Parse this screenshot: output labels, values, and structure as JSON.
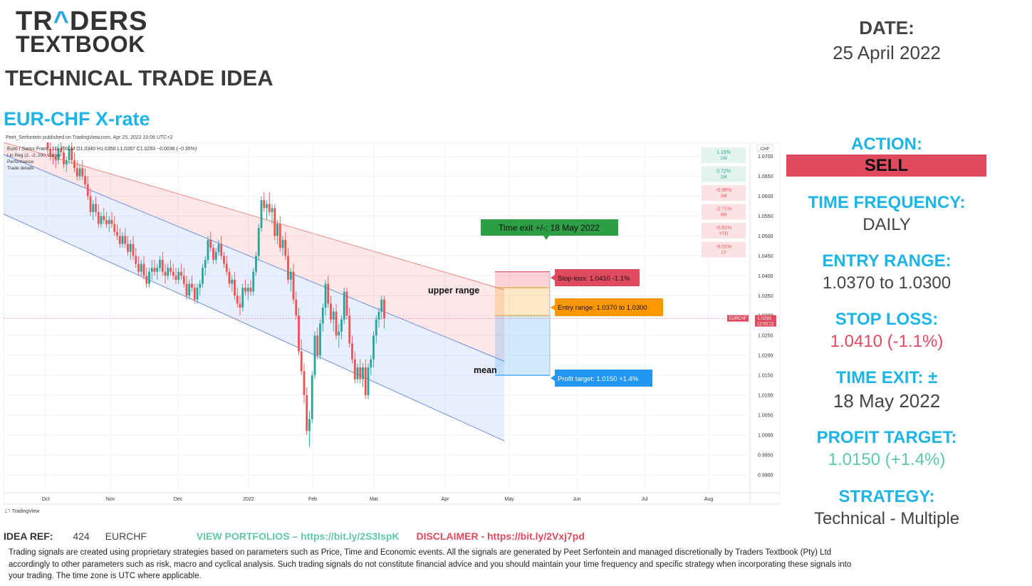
{
  "brand": {
    "line1_a": "TR",
    "line1_caret": "^",
    "line1_b": "DERS",
    "line2": "TEXTBOOK"
  },
  "doc_title": "TECHNICAL TRADE IDEA",
  "pair_title": "EUR-CHF X-rate",
  "published_by": "Peet_Serfontein published on TradingView.com, Apr 25, 2022 10:06 UTC+2",
  "date": {
    "label": "DATE:",
    "value": "25 April 2022"
  },
  "action": {
    "label": "ACTION:",
    "value": "SELL"
  },
  "time_frequency": {
    "label": "TIME FREQUENCY:",
    "value": "DAILY"
  },
  "entry_range": {
    "label": "ENTRY RANGE:",
    "value": "1.0370 to 1.0300"
  },
  "stop_loss": {
    "label": "STOP LOSS:",
    "value": "1.0410 (-1.1%)"
  },
  "time_exit": {
    "label": "TIME EXIT: ±",
    "value": "18 May 2022"
  },
  "profit_target": {
    "label": "PROFIT TARGET:",
    "value": "1.0150 (+1.4%)"
  },
  "strategy": {
    "label": "STRATEGY:",
    "value": "Technical - Multiple"
  },
  "colors": {
    "accent": "#1eb4e6",
    "sell": "#e04a5f",
    "stop": "#e04a5f",
    "profit": "#5fc9a0",
    "entry": "#ff9800",
    "target_box": "#2196f3",
    "time_exit": "#2e9e45"
  },
  "footer": {
    "idea_ref_label": "IDEA REF:",
    "idea_ref_num": "424",
    "idea_ref_pair": "EURCHF",
    "portfolios": "VIEW PORTFOLIOS – https://bit.ly/2S3lspK",
    "disclaimer": "DISCLAIMER -  https://bit.ly/2Vxj7pd",
    "line1": "Trading signals are created using proprietary strategies based on parameters such as Price, Time and Economic events.  All the signals are generated by Peet Serfontein and managed discretionally by Traders Textbook (Pty) Ltd",
    "line2": "accordingly to other parameters such as risk, macro and cyclical analysis. Such trading signals do not constitute financial advice and you should maintain your time frequency and specific strategy when incorporating these signals into",
    "line3": "your trading. The time zone is UTC where applicable."
  },
  "chart_data": {
    "type": "candlestick",
    "symbol_info": "Euro / Swiss Franc, 1D, FXCM  O1.0340  H1.0350  L1.0267  C1.0293  −0.0036 (−0.35%)",
    "indicators": [
      "Lin Reg (2, -2, 200, close)",
      "Performance",
      "Trade details"
    ],
    "currency": "CHF",
    "x_ticks": [
      "Oct",
      "Nov",
      "Dec",
      "2022",
      "Feb",
      "Mar",
      "Apr",
      "May",
      "Jun",
      "Jul",
      "Aug"
    ],
    "y_ticks": [
      "1.0700",
      "1.0650",
      "1.0600",
      "1.0550",
      "1.0500",
      "1.0450",
      "1.0400",
      "1.0350",
      "1.0300",
      "1.0250",
      "1.0200",
      "1.0150",
      "1.0100",
      "1.0050",
      "1.0000",
      "0.9950",
      "0.9900"
    ],
    "ylim": [
      0.9855,
      1.0735
    ],
    "last_price": {
      "symbol": "EURCHF",
      "value": "1.0293",
      "countdown": "12:53:12"
    },
    "performance": [
      {
        "value": "1.15%",
        "period": "1W"
      },
      {
        "value": "0.72%",
        "period": "1M"
      },
      {
        "value": "-0.86%",
        "period": "3M"
      },
      {
        "value": "-2.71%",
        "period": "6M"
      },
      {
        "value": "-0.81%",
        "period": "YTD"
      },
      {
        "value": "-6.01%",
        "period": "1Y"
      }
    ],
    "annotations": {
      "time_exit": "Time exit +/-: 18 May 2022",
      "stop_loss": "Stop-loss: 1.0410 -1.1%",
      "entry_range": "Entry range: 1.0370 to 1.0300",
      "profit_target": "Profit target: 1.0150 +1.4%",
      "upper_range": "upper range",
      "mean": "mean"
    },
    "levels": {
      "stop": 1.041,
      "entry_high": 1.037,
      "entry_low": 1.03,
      "target": 1.015
    },
    "regression_channel": {
      "upper": [
        [
          0,
          1.0735
        ],
        [
          171,
          1.0365
        ]
      ],
      "mean": [
        [
          0,
          1.0705
        ],
        [
          171,
          1.0185
        ]
      ],
      "lower": [
        [
          0,
          1.0555
        ],
        [
          171,
          0.9985
        ]
      ]
    },
    "candles": [
      [
        1.074,
        1.076,
        1.07,
        1.072
      ],
      [
        1.072,
        1.074,
        1.069,
        1.0705
      ],
      [
        1.0705,
        1.0725,
        1.068,
        1.07
      ],
      [
        1.07,
        1.072,
        1.067,
        1.069
      ],
      [
        1.069,
        1.073,
        1.068,
        1.072
      ],
      [
        1.072,
        1.075,
        1.07,
        1.071
      ],
      [
        1.071,
        1.0725,
        1.067,
        1.068
      ],
      [
        1.068,
        1.07,
        1.066,
        1.069
      ],
      [
        1.069,
        1.073,
        1.068,
        1.072
      ],
      [
        1.072,
        1.074,
        1.068,
        1.069
      ],
      [
        1.069,
        1.071,
        1.066,
        1.067
      ],
      [
        1.067,
        1.069,
        1.064,
        1.065
      ],
      [
        1.065,
        1.068,
        1.064,
        1.067
      ],
      [
        1.067,
        1.069,
        1.064,
        1.065
      ],
      [
        1.065,
        1.067,
        1.062,
        1.063
      ],
      [
        1.063,
        1.065,
        1.059,
        1.06
      ],
      [
        1.06,
        1.062,
        1.055,
        1.056
      ],
      [
        1.056,
        1.059,
        1.054,
        1.058
      ],
      [
        1.058,
        1.06,
        1.055,
        1.056
      ],
      [
        1.056,
        1.058,
        1.052,
        1.053
      ],
      [
        1.053,
        1.056,
        1.052,
        1.055
      ],
      [
        1.055,
        1.057,
        1.053,
        1.054
      ],
      [
        1.054,
        1.056,
        1.052,
        1.053
      ],
      [
        1.053,
        1.055,
        1.051,
        1.054
      ],
      [
        1.054,
        1.056,
        1.052,
        1.053
      ],
      [
        1.053,
        1.055,
        1.05,
        1.051
      ],
      [
        1.051,
        1.053,
        1.049,
        1.05
      ],
      [
        1.05,
        1.052,
        1.047,
        1.048
      ],
      [
        1.048,
        1.051,
        1.047,
        1.05
      ],
      [
        1.05,
        1.052,
        1.047,
        1.048
      ],
      [
        1.048,
        1.05,
        1.045,
        1.046
      ],
      [
        1.046,
        1.049,
        1.044,
        1.048
      ],
      [
        1.048,
        1.05,
        1.044,
        1.045
      ],
      [
        1.045,
        1.047,
        1.042,
        1.043
      ],
      [
        1.043,
        1.045,
        1.04,
        1.041
      ],
      [
        1.041,
        1.044,
        1.04,
        1.043
      ],
      [
        1.043,
        1.045,
        1.039,
        1.04
      ],
      [
        1.04,
        1.042,
        1.037,
        1.038
      ],
      [
        1.038,
        1.042,
        1.037,
        1.041
      ],
      [
        1.041,
        1.044,
        1.039,
        1.042
      ],
      [
        1.042,
        1.044,
        1.04,
        1.041
      ],
      [
        1.041,
        1.043,
        1.039,
        1.042
      ],
      [
        1.042,
        1.045,
        1.041,
        1.044
      ],
      [
        1.044,
        1.046,
        1.04,
        1.041
      ],
      [
        1.041,
        1.043,
        1.038,
        1.04
      ],
      [
        1.04,
        1.043,
        1.039,
        1.042
      ],
      [
        1.042,
        1.044,
        1.04,
        1.041
      ],
      [
        1.041,
        1.043,
        1.039,
        1.04
      ],
      [
        1.04,
        1.042,
        1.038,
        1.039
      ],
      [
        1.039,
        1.042,
        1.038,
        1.041
      ],
      [
        1.041,
        1.043,
        1.039,
        1.04
      ],
      [
        1.04,
        1.042,
        1.037,
        1.038
      ],
      [
        1.038,
        1.04,
        1.034,
        1.035
      ],
      [
        1.035,
        1.039,
        1.034,
        1.038
      ],
      [
        1.038,
        1.04,
        1.036,
        1.037
      ],
      [
        1.037,
        1.038,
        1.033,
        1.034
      ],
      [
        1.034,
        1.038,
        1.033,
        1.037
      ],
      [
        1.037,
        1.039,
        1.035,
        1.038
      ],
      [
        1.038,
        1.043,
        1.037,
        1.042
      ],
      [
        1.042,
        1.045,
        1.04,
        1.044
      ],
      [
        1.044,
        1.05,
        1.043,
        1.049
      ],
      [
        1.049,
        1.051,
        1.046,
        1.047
      ],
      [
        1.047,
        1.048,
        1.043,
        1.044
      ],
      [
        1.044,
        1.047,
        1.043,
        1.046
      ],
      [
        1.046,
        1.049,
        1.045,
        1.048
      ],
      [
        1.048,
        1.05,
        1.044,
        1.045
      ],
      [
        1.045,
        1.046,
        1.042,
        1.043
      ],
      [
        1.043,
        1.045,
        1.04,
        1.041
      ],
      [
        1.041,
        1.042,
        1.037,
        1.038
      ],
      [
        1.038,
        1.04,
        1.036,
        1.039
      ],
      [
        1.039,
        1.041,
        1.034,
        1.035
      ],
      [
        1.035,
        1.037,
        1.032,
        1.033
      ],
      [
        1.033,
        1.035,
        1.03,
        1.032
      ],
      [
        1.032,
        1.038,
        1.031,
        1.037
      ],
      [
        1.037,
        1.039,
        1.035,
        1.036
      ],
      [
        1.036,
        1.038,
        1.034,
        1.037
      ],
      [
        1.037,
        1.039,
        1.035,
        1.036
      ],
      [
        1.036,
        1.042,
        1.035,
        1.041
      ],
      [
        1.041,
        1.046,
        1.04,
        1.045
      ],
      [
        1.045,
        1.053,
        1.044,
        1.052
      ],
      [
        1.052,
        1.06,
        1.051,
        1.059
      ],
      [
        1.059,
        1.061,
        1.056,
        1.057
      ],
      [
        1.057,
        1.059,
        1.054,
        1.058
      ],
      [
        1.058,
        1.061,
        1.055,
        1.056
      ],
      [
        1.056,
        1.058,
        1.053,
        1.057
      ],
      [
        1.057,
        1.058,
        1.049,
        1.05
      ],
      [
        1.05,
        1.054,
        1.048,
        1.053
      ],
      [
        1.053,
        1.055,
        1.046,
        1.047
      ],
      [
        1.047,
        1.05,
        1.045,
        1.049
      ],
      [
        1.049,
        1.051,
        1.044,
        1.045
      ],
      [
        1.045,
        1.047,
        1.038,
        1.039
      ],
      [
        1.039,
        1.042,
        1.036,
        1.041
      ],
      [
        1.041,
        1.043,
        1.033,
        1.034
      ],
      [
        1.034,
        1.036,
        1.029,
        1.03
      ],
      [
        1.03,
        1.032,
        1.02,
        1.021
      ],
      [
        1.021,
        1.024,
        1.015,
        1.016
      ],
      [
        1.016,
        1.018,
        1.008,
        1.01
      ],
      [
        1.01,
        1.012,
        1.0,
        1.001
      ],
      [
        1.001,
        1.006,
        0.997,
        1.004
      ],
      [
        1.004,
        1.016,
        1.003,
        1.015
      ],
      [
        1.015,
        1.026,
        1.014,
        1.025
      ],
      [
        1.025,
        1.027,
        1.019,
        1.02
      ],
      [
        1.02,
        1.029,
        1.019,
        1.028
      ],
      [
        1.028,
        1.033,
        1.026,
        1.032
      ],
      [
        1.032,
        1.039,
        1.03,
        1.038
      ],
      [
        1.038,
        1.04,
        1.032,
        1.033
      ],
      [
        1.033,
        1.035,
        1.028,
        1.029
      ],
      [
        1.029,
        1.032,
        1.026,
        1.031
      ],
      [
        1.031,
        1.033,
        1.024,
        1.025
      ],
      [
        1.025,
        1.028,
        1.022,
        1.026
      ],
      [
        1.026,
        1.03,
        1.024,
        1.029
      ],
      [
        1.029,
        1.037,
        1.028,
        1.036
      ],
      [
        1.036,
        1.037,
        1.029,
        1.03
      ],
      [
        1.03,
        1.032,
        1.022,
        1.023
      ],
      [
        1.023,
        1.025,
        1.018,
        1.019
      ],
      [
        1.019,
        1.021,
        1.013,
        1.014
      ],
      [
        1.014,
        1.018,
        1.013,
        1.017
      ],
      [
        1.017,
        1.019,
        1.013,
        1.014
      ],
      [
        1.014,
        1.018,
        1.012,
        1.017
      ],
      [
        1.017,
        1.019,
        1.009,
        1.01
      ],
      [
        1.01,
        1.018,
        1.009,
        1.017
      ],
      [
        1.017,
        1.02,
        1.015,
        1.019
      ],
      [
        1.019,
        1.026,
        1.017,
        1.025
      ],
      [
        1.025,
        1.03,
        1.023,
        1.029
      ],
      [
        1.029,
        1.032,
        1.027,
        1.031
      ],
      [
        1.031,
        1.035,
        1.029,
        1.034
      ],
      [
        1.034,
        1.035,
        1.0267,
        1.0293
      ]
    ]
  }
}
